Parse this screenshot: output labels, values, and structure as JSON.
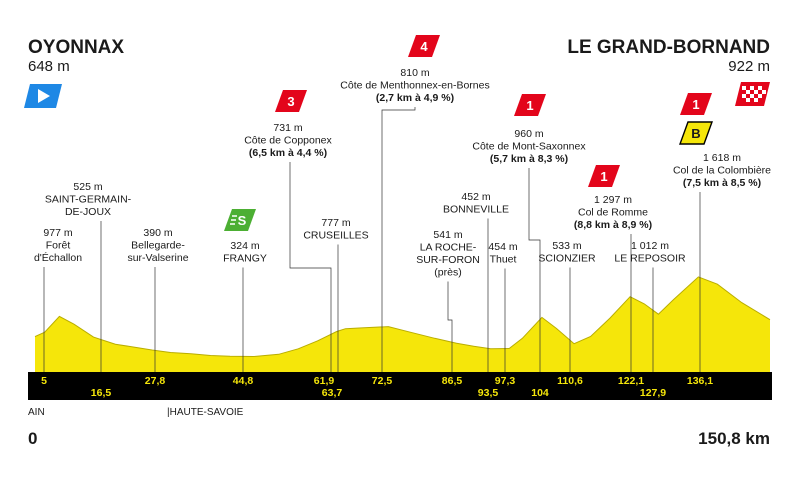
{
  "start": {
    "city": "OYONNAX",
    "altitude": "648 m"
  },
  "finish": {
    "city": "LE GRAND-BORNAND",
    "altitude": "922 m"
  },
  "distance_start": "0",
  "distance_total": "150,8 km",
  "regions": {
    "left": "AIN",
    "right": "|HAUTE-SAVOIE"
  },
  "colors": {
    "profile": "#f5e60a",
    "road_band": "#000000",
    "climb": "#e3051b",
    "sprint": "#4caf33",
    "bonus": "#f5e60a",
    "start_flag": "#1e88e5"
  },
  "km_markers": [
    {
      "km": 5,
      "label": "5",
      "row": 1
    },
    {
      "km": 16.5,
      "label": "16,5",
      "row": 2
    },
    {
      "km": 27.8,
      "label": "27,8",
      "row": 1
    },
    {
      "km": 44.8,
      "label": "44,8",
      "row": 1
    },
    {
      "km": 61.9,
      "label": "61,9",
      "row": 1
    },
    {
      "km": 63.7,
      "label": "63,7",
      "row": 2
    },
    {
      "km": 72.5,
      "label": "72,5",
      "row": 1
    },
    {
      "km": 86.5,
      "label": "86,5",
      "row": 1
    },
    {
      "km": 93.5,
      "label": "93,5",
      "row": 2
    },
    {
      "km": 97.3,
      "label": "97,3",
      "row": 1
    },
    {
      "km": 104,
      "label": "104",
      "row": 2
    },
    {
      "km": 110.6,
      "label": "110,6",
      "row": 1
    },
    {
      "km": 122.1,
      "label": "122,1",
      "row": 1
    },
    {
      "km": 127.9,
      "label": "127,9",
      "row": 2
    },
    {
      "km": 136.1,
      "label": "136,1",
      "row": 1
    }
  ],
  "waypoints": [
    {
      "id": "foret-dechallon",
      "km": 5,
      "lines": [
        "977 m",
        "Forêt",
        "d'Échallon"
      ]
    },
    {
      "id": "saint-germain-de-joux",
      "km": 16.5,
      "lines": [
        "525 m",
        "SAINT-GERMAIN-",
        "DE-JOUX"
      ]
    },
    {
      "id": "bellegarde",
      "km": 27.8,
      "lines": [
        "390 m",
        "Bellegarde-",
        "sur-Valserine"
      ]
    },
    {
      "id": "frangy",
      "km": 44.8,
      "lines": [
        "324 m",
        "FRANGY"
      ]
    },
    {
      "id": "cote-de-copponex",
      "km": 61.9,
      "lines": [
        "731 m",
        "Côte de Copponex"
      ],
      "detail": "(6,5 km à 4,4 %)"
    },
    {
      "id": "cruseilles",
      "km": 63.7,
      "lines": [
        "777 m",
        "CRUSEILLES"
      ]
    },
    {
      "id": "cote-de-menthonnex",
      "km": 72.5,
      "lines": [
        "810 m",
        "Côte de Menthonnex-en-Bornes"
      ],
      "detail": "(2,7 km à 4,9 %)"
    },
    {
      "id": "la-roche-sur-foron",
      "km": 86.5,
      "lines": [
        "541 m",
        "LA ROCHE-",
        "SUR-FORON",
        "(près)"
      ]
    },
    {
      "id": "bonneville",
      "km": 93.5,
      "lines": [
        "452 m",
        "BONNEVILLE"
      ]
    },
    {
      "id": "thuet",
      "km": 97.3,
      "lines": [
        "454 m",
        "Thuet"
      ]
    },
    {
      "id": "cote-de-mont-saxonnex",
      "km": 104,
      "lines": [
        "960 m",
        "Côte de Mont-Saxonnex"
      ],
      "detail": "(5,7 km à 8,3 %)"
    },
    {
      "id": "scionzier",
      "km": 110.6,
      "lines": [
        "533 m",
        "SCIONZIER"
      ]
    },
    {
      "id": "col-de-romme",
      "km": 122.1,
      "lines": [
        "1 297 m",
        "Col de Romme"
      ],
      "detail": "(8,8 km à 8,9 %)"
    },
    {
      "id": "le-reposoir",
      "km": 127.9,
      "lines": [
        "1 012 m",
        "LE REPOSOIR"
      ]
    },
    {
      "id": "col-de-la-colombiere",
      "km": 136.1,
      "lines": [
        "1 618 m",
        "Col de la Colombière"
      ],
      "detail": "(7,5 km à 8,5 %)"
    }
  ],
  "badges": [
    {
      "id": "climb-cat-3",
      "type": "climb",
      "label": "3",
      "km": 61.9
    },
    {
      "id": "climb-cat-4",
      "type": "climb",
      "label": "4",
      "km": 72.5
    },
    {
      "id": "climb-cat-1-saxonnex",
      "type": "climb",
      "label": "1",
      "km": 104
    },
    {
      "id": "climb-cat-1-romme",
      "type": "climb",
      "label": "1",
      "km": 122.1
    },
    {
      "id": "climb-cat-1-colombiere",
      "type": "climb",
      "label": "1",
      "km": 136.1
    },
    {
      "id": "bonus-sprint",
      "type": "bonus",
      "label": "B",
      "km": 136.1
    },
    {
      "id": "intermediate-sprint",
      "type": "sprint",
      "label": "S",
      "km": 44.8
    }
  ],
  "profile": [
    [
      0,
      648
    ],
    [
      2,
      720
    ],
    [
      5,
      977
    ],
    [
      8,
      850
    ],
    [
      12,
      640
    ],
    [
      16.5,
      525
    ],
    [
      20,
      480
    ],
    [
      24,
      430
    ],
    [
      27.8,
      390
    ],
    [
      32,
      370
    ],
    [
      36,
      340
    ],
    [
      40,
      330
    ],
    [
      44.8,
      324
    ],
    [
      50,
      360
    ],
    [
      54,
      450
    ],
    [
      58,
      580
    ],
    [
      61.9,
      731
    ],
    [
      63.7,
      777
    ],
    [
      67,
      790
    ],
    [
      72.5,
      810
    ],
    [
      77,
      720
    ],
    [
      82,
      620
    ],
    [
      86.5,
      541
    ],
    [
      90,
      490
    ],
    [
      93.5,
      452
    ],
    [
      97.3,
      454
    ],
    [
      100,
      620
    ],
    [
      104,
      960
    ],
    [
      107,
      780
    ],
    [
      110.6,
      533
    ],
    [
      114,
      650
    ],
    [
      118,
      950
    ],
    [
      122.1,
      1297
    ],
    [
      125,
      1180
    ],
    [
      127.9,
      1012
    ],
    [
      131,
      1250
    ],
    [
      136.1,
      1618
    ],
    [
      140,
      1500
    ],
    [
      145,
      1200
    ],
    [
      150.8,
      922
    ]
  ]
}
